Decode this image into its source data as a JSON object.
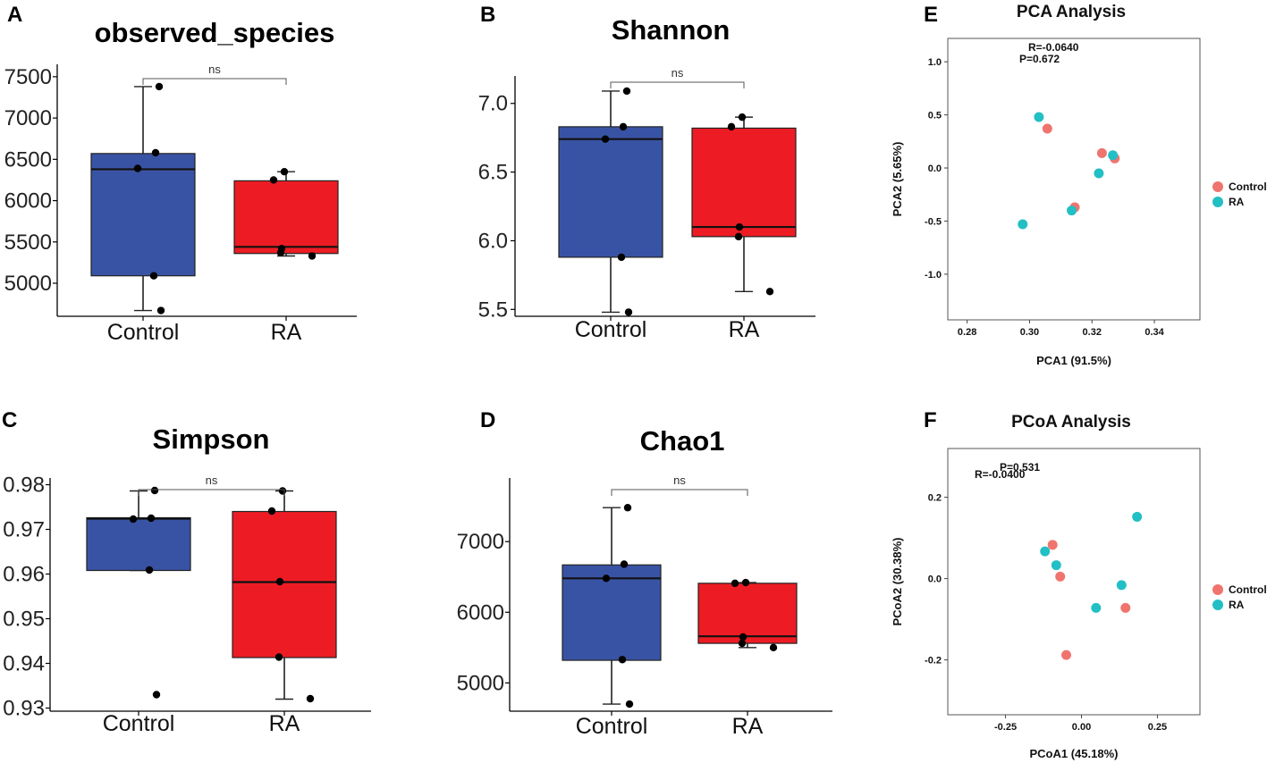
{
  "colors": {
    "control_box": "#3953a4",
    "ra_box": "#ed1c24",
    "control_point": "#f0746e",
    "ra_point": "#22bfc4",
    "ink": "#000000"
  },
  "chart_data": [
    {
      "id": "A",
      "panel_label": "A",
      "type": "box",
      "title": "observed_species",
      "categories": [
        "Control",
        "RA"
      ],
      "ylim": [
        4600,
        7650
      ],
      "yticks": [
        5000,
        5500,
        6000,
        6500,
        7000,
        7500
      ],
      "ytick_labels": [
        "5000",
        "5500",
        "6000",
        "6500",
        "7000",
        "7500"
      ],
      "boxes": [
        {
          "name": "Control",
          "q1": 5090,
          "median": 6380,
          "q3": 6570,
          "whisker_low": 4670,
          "whisker_high": 7380
        },
        {
          "name": "RA",
          "q1": 5360,
          "median": 5440,
          "q3": 6240,
          "whisker_low": 5330,
          "whisker_high": 6350
        }
      ],
      "points": [
        {
          "group": "Control",
          "y": 7380
        },
        {
          "group": "Control",
          "y": 6580
        },
        {
          "group": "Control",
          "y": 6390
        },
        {
          "group": "Control",
          "y": 5090
        },
        {
          "group": "Control",
          "y": 4670
        },
        {
          "group": "RA",
          "y": 6350
        },
        {
          "group": "RA",
          "y": 6250
        },
        {
          "group": "RA",
          "y": 5420
        },
        {
          "group": "RA",
          "y": 5370
        },
        {
          "group": "RA",
          "y": 5330
        }
      ],
      "significance": "ns"
    },
    {
      "id": "B",
      "panel_label": "B",
      "type": "box",
      "title": "Shannon",
      "categories": [
        "Control",
        "RA"
      ],
      "ylim": [
        5.45,
        7.2
      ],
      "yticks": [
        5.5,
        6.0,
        6.5,
        7.0
      ],
      "ytick_labels": [
        "5.5",
        "6.0",
        "6.5",
        "7.0"
      ],
      "boxes": [
        {
          "name": "Control",
          "q1": 5.88,
          "median": 6.74,
          "q3": 6.83,
          "whisker_low": 5.48,
          "whisker_high": 7.09
        },
        {
          "name": "RA",
          "q1": 6.03,
          "median": 6.1,
          "q3": 6.82,
          "whisker_low": 5.63,
          "whisker_high": 6.9
        }
      ],
      "points": [
        {
          "group": "Control",
          "y": 7.09
        },
        {
          "group": "Control",
          "y": 6.83
        },
        {
          "group": "Control",
          "y": 6.74
        },
        {
          "group": "Control",
          "y": 5.88
        },
        {
          "group": "Control",
          "y": 5.48
        },
        {
          "group": "RA",
          "y": 6.9
        },
        {
          "group": "RA",
          "y": 6.83
        },
        {
          "group": "RA",
          "y": 6.1
        },
        {
          "group": "RA",
          "y": 6.03
        },
        {
          "group": "RA",
          "y": 5.63
        }
      ],
      "significance": "ns"
    },
    {
      "id": "C",
      "panel_label": "C",
      "type": "box",
      "title": "Simpson",
      "categories": [
        "Control",
        "RA"
      ],
      "ylim": [
        0.9293,
        0.9815
      ],
      "yticks": [
        0.93,
        0.94,
        0.95,
        0.96,
        0.97,
        0.98
      ],
      "ytick_labels": [
        "0.93",
        "0.94",
        "0.95",
        "0.96",
        "0.97",
        "0.98"
      ],
      "boxes": [
        {
          "name": "Control",
          "q1": 0.9608,
          "median": 0.9724,
          "q3": 0.9726,
          "whisker_low": 0.9608,
          "whisker_high": 0.9786
        },
        {
          "name": "RA",
          "q1": 0.9413,
          "median": 0.9582,
          "q3": 0.974,
          "whisker_low": 0.932,
          "whisker_high": 0.9786
        }
      ],
      "points": [
        {
          "group": "Control",
          "y": 0.9787
        },
        {
          "group": "Control",
          "y": 0.9725
        },
        {
          "group": "Control",
          "y": 0.9723
        },
        {
          "group": "Control",
          "y": 0.9609
        },
        {
          "group": "Control",
          "y": 0.933
        },
        {
          "group": "RA",
          "y": 0.9786
        },
        {
          "group": "RA",
          "y": 0.9741
        },
        {
          "group": "RA",
          "y": 0.9583
        },
        {
          "group": "RA",
          "y": 0.9414
        },
        {
          "group": "RA",
          "y": 0.9321
        }
      ],
      "significance": "ns"
    },
    {
      "id": "D",
      "panel_label": "D",
      "type": "box",
      "title": "Chao1",
      "categories": [
        "Control",
        "RA"
      ],
      "ylim": [
        4600,
        7900
      ],
      "yticks": [
        5000,
        6000,
        7000
      ],
      "ytick_labels": [
        "5000",
        "6000",
        "7000"
      ],
      "boxes": [
        {
          "name": "Control",
          "q1": 5320,
          "median": 6480,
          "q3": 6670,
          "whisker_low": 4700,
          "whisker_high": 7480
        },
        {
          "name": "RA",
          "q1": 5560,
          "median": 5660,
          "q3": 6410,
          "whisker_low": 5500,
          "whisker_high": 6420
        }
      ],
      "points": [
        {
          "group": "Control",
          "y": 7480
        },
        {
          "group": "Control",
          "y": 6680
        },
        {
          "group": "Control",
          "y": 6480
        },
        {
          "group": "Control",
          "y": 5330
        },
        {
          "group": "Control",
          "y": 4700
        },
        {
          "group": "RA",
          "y": 6420
        },
        {
          "group": "RA",
          "y": 6410
        },
        {
          "group": "RA",
          "y": 5650
        },
        {
          "group": "RA",
          "y": 5560
        },
        {
          "group": "RA",
          "y": 5500
        }
      ],
      "significance": "ns"
    },
    {
      "id": "E",
      "panel_label": "E",
      "type": "scatter",
      "title": "PCA Analysis",
      "xlabel": "PCA1 (91.5%)",
      "ylabel": "PCA2 (5.65%)",
      "xlim": [
        0.2738,
        0.3546
      ],
      "ylim": [
        -1.43,
        1.22
      ],
      "xticks": [
        0.28,
        0.3,
        0.32,
        0.34
      ],
      "xtick_labels": [
        "0.28",
        "0.30",
        "0.32",
        "0.34"
      ],
      "yticks": [
        -1.0,
        -0.5,
        0.0,
        0.5,
        1.0
      ],
      "ytick_labels": [
        "-1.0",
        "-0.5",
        "0.0",
        "0.5",
        "1.0"
      ],
      "annotations": [
        "R=-0.0640",
        "P=0.672"
      ],
      "legend": [
        "Control",
        "RA"
      ],
      "series": [
        {
          "name": "Control",
          "points": [
            [
              0.3057,
              0.37
            ],
            [
              0.3232,
              0.14
            ],
            [
              0.3273,
              0.09
            ],
            [
              0.3145,
              -0.37
            ]
          ]
        },
        {
          "name": "RA",
          "points": [
            [
              0.303,
              0.48
            ],
            [
              0.3267,
              0.12
            ],
            [
              0.3222,
              -0.05
            ],
            [
              0.3135,
              -0.4
            ],
            [
              0.2978,
              -0.53
            ]
          ]
        }
      ]
    },
    {
      "id": "F",
      "panel_label": "F",
      "type": "scatter",
      "title": "PCoA Analysis",
      "xlabel": "PCoA1 (45.18%)",
      "ylabel": "PCoA2 (30.38%)",
      "xlim": [
        -0.44,
        0.39
      ],
      "ylim": [
        -0.335,
        0.32
      ],
      "xticks": [
        -0.25,
        0.0,
        0.25
      ],
      "xtick_labels": [
        "-0.25",
        "0.00",
        "0.25"
      ],
      "yticks": [
        -0.2,
        0.0,
        0.2
      ],
      "ytick_labels": [
        "-0.2",
        "0.0",
        "0.2"
      ],
      "annotations": [
        "P=0.531",
        "R=-0.0400"
      ],
      "legend": [
        "Control",
        "RA"
      ],
      "series": [
        {
          "name": "Control",
          "points": [
            [
              -0.095,
              0.083
            ],
            [
              -0.07,
              0.005
            ],
            [
              -0.05,
              -0.188
            ],
            [
              0.145,
              -0.072
            ]
          ]
        },
        {
          "name": "RA",
          "points": [
            [
              -0.12,
              0.067
            ],
            [
              -0.083,
              0.033
            ],
            [
              0.048,
              -0.072
            ],
            [
              0.132,
              -0.016
            ],
            [
              0.183,
              0.152
            ]
          ]
        }
      ]
    }
  ]
}
